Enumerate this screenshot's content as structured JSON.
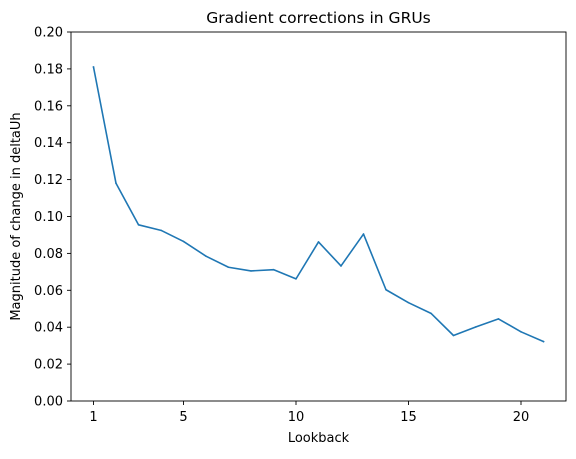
{
  "chart_data": {
    "type": "line",
    "title": "Gradient corrections in GRUs",
    "xlabel": "Lookback",
    "ylabel": "Magnitude of change in deltaUh",
    "xlim": [
      0.0,
      22.0
    ],
    "ylim": [
      0.0,
      0.2
    ],
    "x_ticks": [
      1,
      5,
      10,
      15,
      20
    ],
    "x_tick_labels": [
      "1",
      "5",
      "10",
      "15",
      "20"
    ],
    "y_ticks": [
      0.0,
      0.02,
      0.04,
      0.06,
      0.08,
      0.1,
      0.12,
      0.14,
      0.16,
      0.18,
      0.2
    ],
    "y_tick_labels": [
      "0.00",
      "0.02",
      "0.04",
      "0.06",
      "0.08",
      "0.10",
      "0.12",
      "0.14",
      "0.16",
      "0.18",
      "0.20"
    ],
    "grid": false,
    "series": [
      {
        "color": "#1f77b4",
        "x": [
          1,
          2,
          3,
          4,
          5,
          6,
          7,
          8,
          9,
          10,
          11,
          12,
          13,
          14,
          15,
          16,
          17,
          18,
          19,
          20,
          21
        ],
        "values": [
          0.181,
          0.118,
          0.0955,
          0.0925,
          0.0865,
          0.0785,
          0.0725,
          0.0705,
          0.0712,
          0.0662,
          0.0862,
          0.0732,
          0.0905,
          0.0603,
          0.0533,
          0.0475,
          0.0355,
          0.0402,
          0.0445,
          0.0375,
          0.0322
        ]
      }
    ]
  }
}
